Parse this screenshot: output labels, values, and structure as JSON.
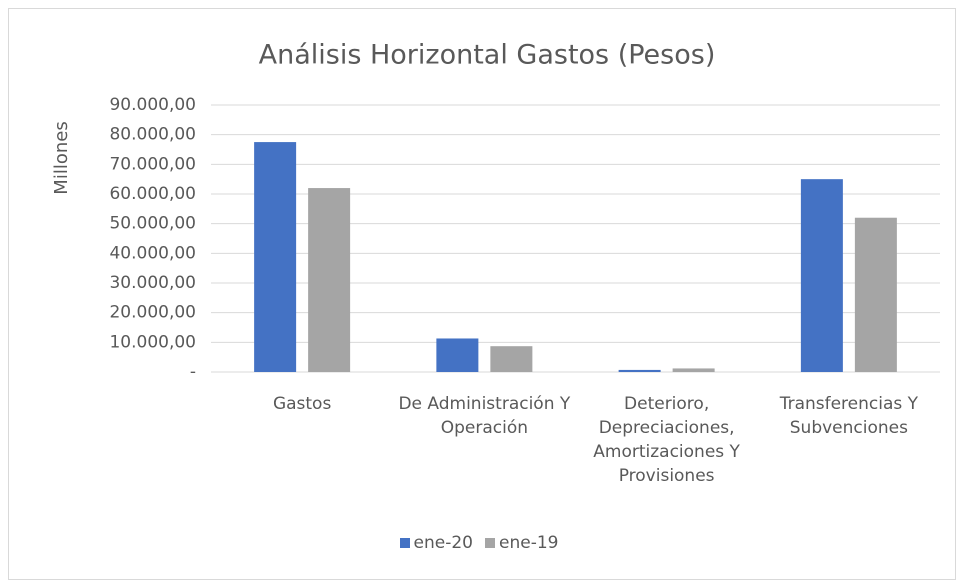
{
  "chart_data": {
    "type": "bar",
    "title": "Análisis Horizontal Gastos (Pesos)",
    "y_label": "Millones",
    "categories": [
      "Gastos",
      "De Administración Y Operación",
      "Deterioro, Depreciaciones, Amortizaciones Y Provisiones",
      "Transferencias Y Subvenciones"
    ],
    "series": [
      {
        "name": "ene-20",
        "color": "#4472c4",
        "values": [
          77500,
          11300,
          700,
          65000
        ]
      },
      {
        "name": "ene-19",
        "color": "#a5a5a5",
        "values": [
          62000,
          8700,
          1200,
          52000
        ]
      }
    ],
    "ylim": [
      0,
      90000
    ],
    "yticks": [
      {
        "value": 0,
        "label": "-"
      },
      {
        "value": 10000,
        "label": "10.000,00"
      },
      {
        "value": 20000,
        "label": "20.000,00"
      },
      {
        "value": 30000,
        "label": "30.000,00"
      },
      {
        "value": 40000,
        "label": "40.000,00"
      },
      {
        "value": 50000,
        "label": "50.000,00"
      },
      {
        "value": 60000,
        "label": "60.000,00"
      },
      {
        "value": 70000,
        "label": "70.000,00"
      },
      {
        "value": 80000,
        "label": "80.000,00"
      },
      {
        "value": 90000,
        "label": "90.000,00"
      }
    ],
    "grid": true,
    "legend": "bottom"
  }
}
